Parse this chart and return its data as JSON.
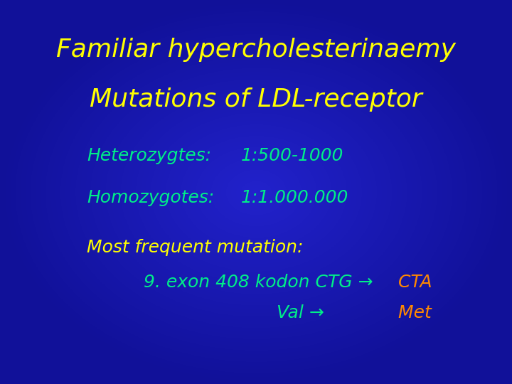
{
  "title_line1": "Familiar hypercholesterinaemy",
  "title_line2": "Mutations of LDL-receptor",
  "title_color": "#FFFF00",
  "bg_color": "#2222cc",
  "label1": "Heterozygtes:",
  "value1": "1:500-1000",
  "label2": "Homozygotes:",
  "value2": "1:1.000.000",
  "label_color": "#00EE88",
  "value_color": "#00EE88",
  "most_text": "Most frequent mutation:",
  "most_color": "#FFFF00",
  "mutation_main": "9. exon 408 kodon CTG →",
  "mutation_cta": "  CTA",
  "val_arrow": "Val →",
  "val_met": "  Met",
  "mutation_color": "#00EE88",
  "cta_color": "#FF8800",
  "met_color": "#FF8800",
  "title_fontsize": 26,
  "body_fontsize": 18,
  "most_fontsize": 18
}
